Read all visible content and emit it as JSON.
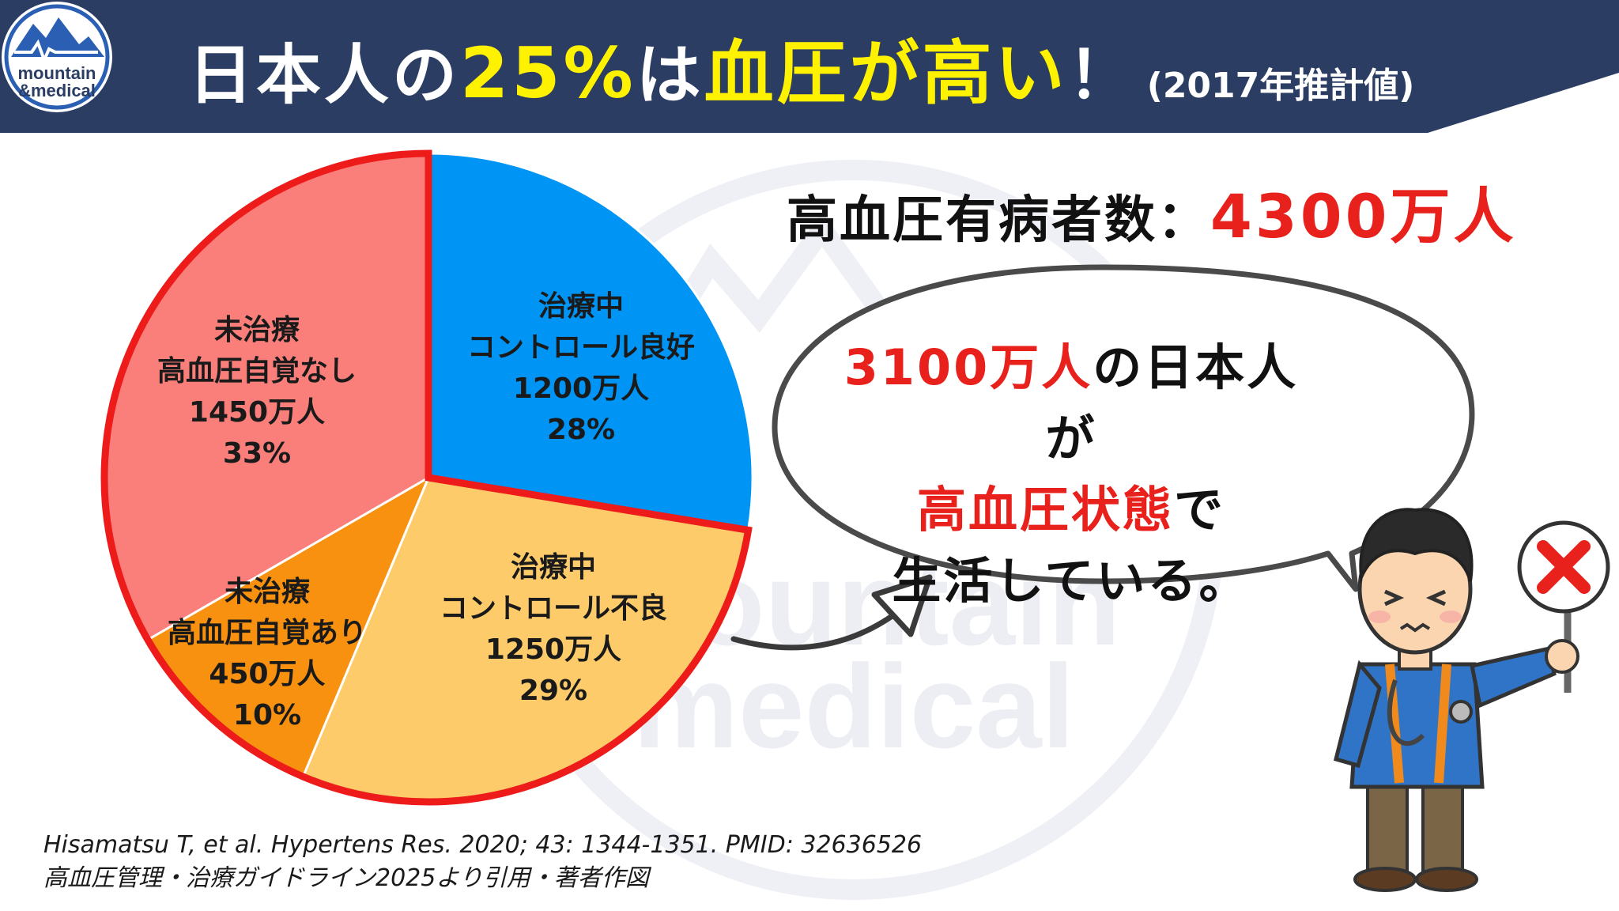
{
  "header": {
    "title_part1": "日本人の",
    "title_highlight1": "25%",
    "title_part2": "は",
    "title_highlight2": "血圧が高い",
    "title_part3": "！",
    "subtitle": "(2017年推計値)",
    "logo_line1": "mountain",
    "logo_line2": "&medical",
    "bg_color": "#2b3d63",
    "highlight_color": "#fff200"
  },
  "watermark": {
    "line1": "mountain",
    "line2": "medical"
  },
  "total": {
    "label": "高血圧有病者数：",
    "value": "4300万人"
  },
  "chart_data": {
    "type": "pie",
    "unit": "万人",
    "slices": [
      {
        "label_lines": [
          "治療中",
          "コントロール良好"
        ],
        "value": 1200,
        "value_label": "1200万人",
        "percent": 28,
        "percent_label": "28%",
        "color": "#0095f5"
      },
      {
        "label_lines": [
          "治療中",
          "コントロール不良"
        ],
        "value": 1250,
        "value_label": "1250万人",
        "percent": 29,
        "percent_label": "29%",
        "color": "#fecb6a"
      },
      {
        "label_lines": [
          "未治療",
          "高血圧自覚あり"
        ],
        "value": 450,
        "value_label": "450万人",
        "percent": 10,
        "percent_label": "10%",
        "color": "#f7910f"
      },
      {
        "label_lines": [
          "未治療",
          "高血圧自覚なし"
        ],
        "value": 1450,
        "value_label": "1450万人",
        "percent": 33,
        "percent_label": "33%",
        "color": "#fa7f7b"
      }
    ],
    "highlighted_slices": [
      1,
      2,
      3
    ],
    "highlight_color": "#ee1b1b"
  },
  "bubble": {
    "line1_red": "3100万人",
    "line1_rest": "の日本人が",
    "line2_red": "高血圧状態",
    "line2_rest": "で",
    "line3": "生活している。"
  },
  "citation": {
    "line1": "Hisamatsu T, et al. Hypertens Res. 2020; 43: 1344-1351. PMID: 32636526",
    "line2": "高血圧管理・治療ガイドライン2025より引用・著者作図"
  }
}
